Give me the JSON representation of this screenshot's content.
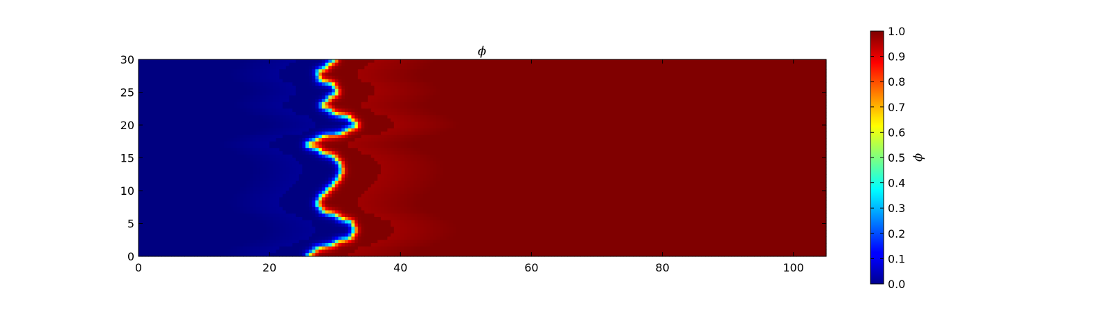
{
  "chart_data": [
    {
      "type": "heatmap",
      "title": "ϕ",
      "xlabel": "",
      "ylabel": "",
      "xlim": [
        0,
        105
      ],
      "ylim": [
        0,
        30
      ],
      "x_ticks": [
        0,
        20,
        40,
        60,
        80,
        100
      ],
      "y_ticks": [
        0,
        5,
        10,
        15,
        20,
        25,
        30
      ],
      "x_tick_labels": [
        "0",
        "20",
        "40",
        "60",
        "80",
        "100"
      ],
      "y_tick_labels": [
        "0",
        "5",
        "10",
        "15",
        "20",
        "25",
        "30"
      ],
      "grid": false,
      "colormap": "jet",
      "value_range": [
        0,
        1
      ],
      "field": {
        "description_of_values": "phase field phi; ~0 left of interface, ~1 right of interface",
        "interface_x_at_y": [
          [
            0,
            25.9
          ],
          [
            1,
            27.0
          ],
          [
            2,
            30.0
          ],
          [
            3,
            32.5
          ],
          [
            4,
            33.0
          ],
          [
            5,
            32.6
          ],
          [
            6,
            30.5
          ],
          [
            7,
            28.0
          ],
          [
            8,
            27.3
          ],
          [
            9,
            27.8
          ],
          [
            10,
            28.8
          ],
          [
            11,
            29.8
          ],
          [
            12,
            30.6
          ],
          [
            13,
            31.0
          ],
          [
            14,
            30.8
          ],
          [
            15,
            30.0
          ],
          [
            16,
            27.8
          ],
          [
            17,
            25.8
          ],
          [
            18,
            27.5
          ],
          [
            19,
            31.5
          ],
          [
            20,
            33.3
          ],
          [
            21,
            32.3
          ],
          [
            22,
            29.5
          ],
          [
            23,
            28.0
          ],
          [
            24,
            29.0
          ],
          [
            25,
            30.3
          ],
          [
            26,
            29.8
          ],
          [
            27,
            27.6
          ],
          [
            28,
            27.4
          ],
          [
            29,
            28.8
          ],
          [
            30,
            30.0
          ]
        ],
        "far_field_left_value": 0.0,
        "far_field_right_value": 1.0
      }
    }
  ],
  "colorbar": {
    "label": "ϕ",
    "ticks": [
      0.0,
      0.1,
      0.2,
      0.3,
      0.4,
      0.5,
      0.6,
      0.7,
      0.8,
      0.9,
      1.0
    ],
    "tick_labels": [
      "0.0",
      "0.1",
      "0.2",
      "0.3",
      "0.4",
      "0.5",
      "0.6",
      "0.7",
      "0.8",
      "0.9",
      "1.0"
    ],
    "range": [
      0,
      1
    ]
  }
}
